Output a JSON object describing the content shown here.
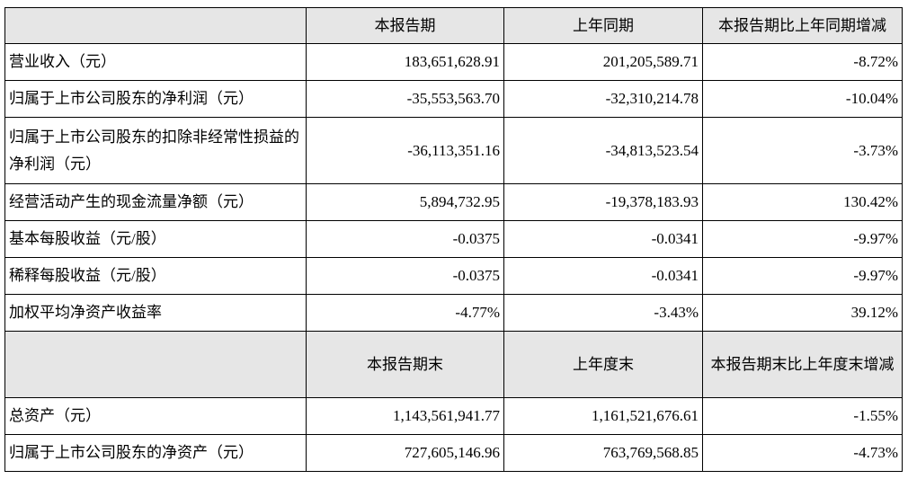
{
  "table": {
    "header": [
      "本报告期",
      "上年同期",
      "本报告期比上年同期增减"
    ],
    "rows": [
      [
        "营业收入（元）",
        "183,651,628.91",
        "201,205,589.71",
        "-8.72%"
      ],
      [
        "归属于上市公司股东的净利润（元）",
        "-35,553,563.70",
        "-32,310,214.78",
        "-10.04%"
      ],
      [
        "归属于上市公司股东的扣除非经常性损益的净利润（元）",
        "-36,113,351.16",
        "-34,813,523.54",
        "-3.73%"
      ],
      [
        "经营活动产生的现金流量净额（元）",
        "5,894,732.95",
        "-19,378,183.93",
        "130.42%"
      ],
      [
        "基本每股收益（元/股）",
        "-0.0375",
        "-0.0341",
        "-9.97%"
      ],
      [
        "稀释每股收益（元/股）",
        "-0.0375",
        "-0.0341",
        "-9.97%"
      ],
      [
        "加权平均净资产收益率",
        "-4.77%",
        "-3.43%",
        "39.12%"
      ]
    ]
  },
  "table2": {
    "header": [
      "本报告期末",
      "上年度末",
      "本报告期末比上年度末增减"
    ],
    "rows": [
      [
        "总资产（元）",
        "1,143,561,941.77",
        "1,161,521,676.61",
        "-1.55%"
      ],
      [
        "归属于上市公司股东的净资产（元）",
        "727,605,146.96",
        "763,769,568.85",
        "-4.73%"
      ]
    ]
  }
}
